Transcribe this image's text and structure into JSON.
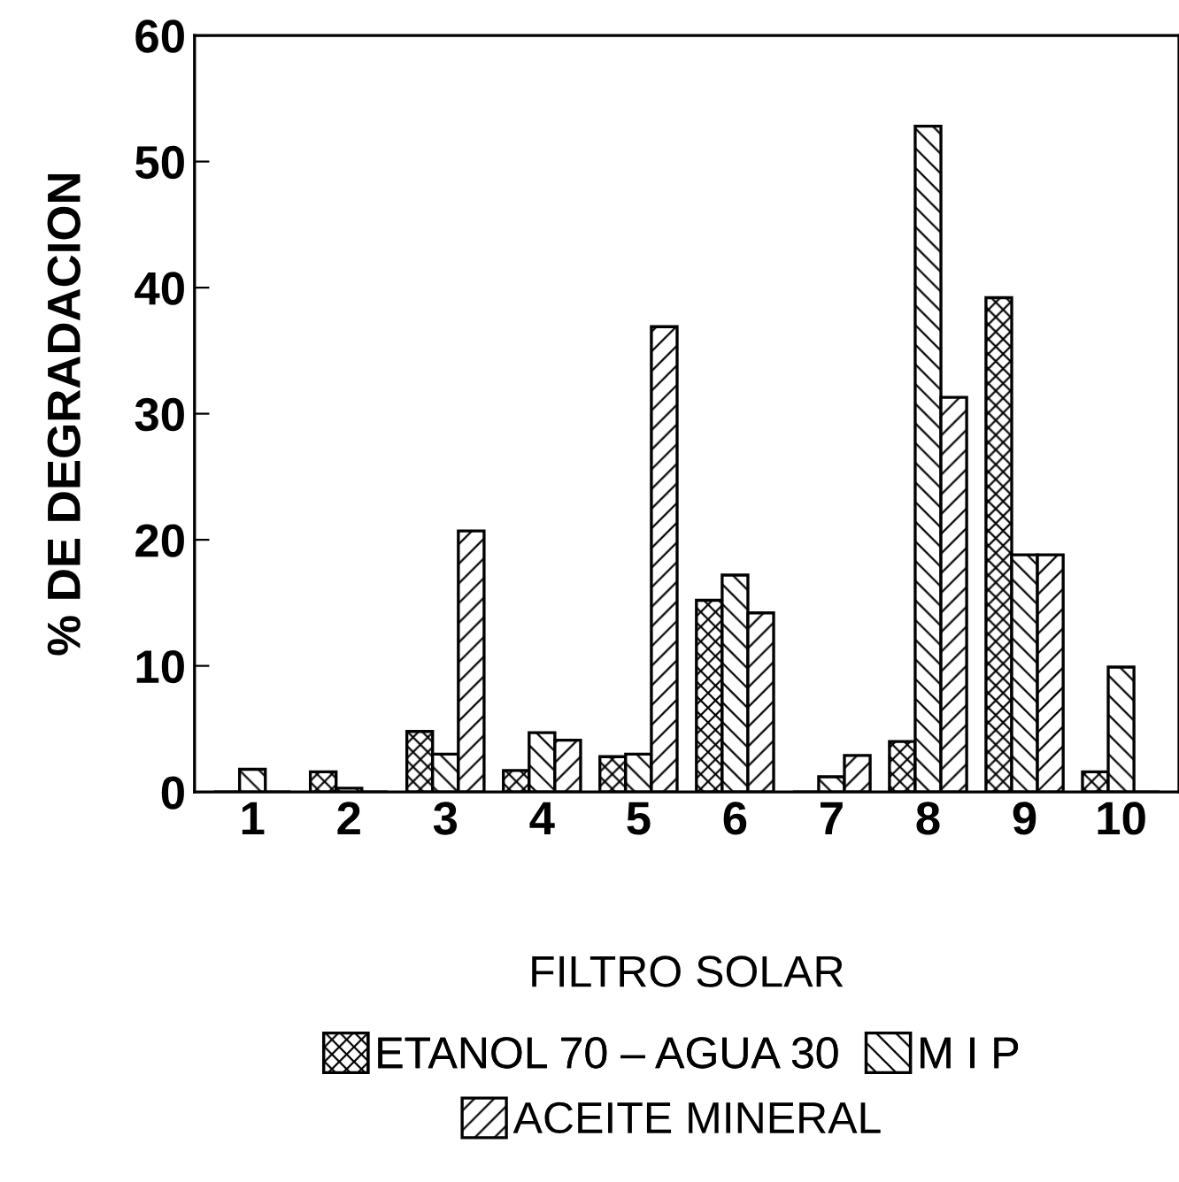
{
  "chart_data": {
    "type": "bar",
    "xlabel": "FILTRO SOLAR",
    "ylabel": "% DE DEGRADACION",
    "categories": [
      "1",
      "2",
      "3",
      "4",
      "5",
      "6",
      "7",
      "8",
      "9",
      "10"
    ],
    "series": [
      {
        "name": "ETANOL 70 – AGUA 30",
        "color": "#000000",
        "values": [
          0,
          1.6,
          4.8,
          1.7,
          2.8,
          15.2,
          0,
          4.0,
          39.2,
          1.6
        ]
      },
      {
        "name": "M I P",
        "color": "#000000",
        "values": [
          1.8,
          0.3,
          3.0,
          4.7,
          3.0,
          17.2,
          1.2,
          52.8,
          18.8,
          9.9
        ]
      },
      {
        "name": "ACEITE MINERAL",
        "color": "#000000",
        "values": [
          0,
          0,
          20.7,
          4.1,
          36.9,
          14.2,
          2.9,
          31.3,
          18.8,
          0
        ]
      }
    ],
    "ylim": [
      0,
      60
    ],
    "yticks": [
      0,
      10,
      20,
      30,
      40,
      50,
      60
    ],
    "grid": false,
    "legend": "bottom"
  }
}
